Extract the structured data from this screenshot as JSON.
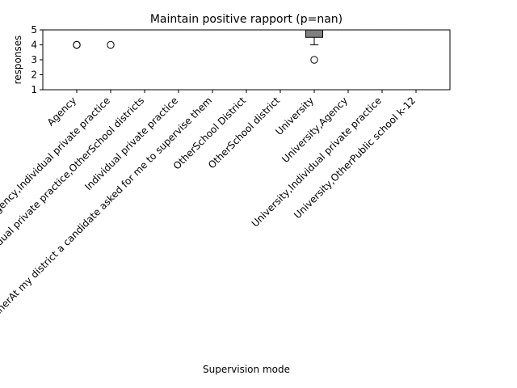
{
  "chart_data": {
    "type": "box",
    "title": "Maintain positive rapport (p=nan)",
    "xlabel": "Supervision mode",
    "ylabel": "responses",
    "ylim": [
      1,
      5
    ],
    "yticks": [
      1,
      2,
      3,
      4,
      5
    ],
    "grid": false,
    "categories": [
      "Agency",
      "Agency,Individual private practice",
      "Agency,Individual private practice,OtherSchool districts",
      "Individual private practice",
      "OtherAt my district a candidate asked for me to supervise them",
      "OtherSchool District",
      "OtherSchool district",
      "University",
      "University,Agency",
      "University,Individual private practice",
      "University,OtherPublic school k-12"
    ],
    "boxes": [
      {
        "label": "Agency",
        "q1": 5,
        "median": 5,
        "q3": 5,
        "whisker_low": 5,
        "whisker_high": 5,
        "outliers": [
          4,
          4
        ]
      },
      {
        "label": "Agency,Individual private practice",
        "q1": 5,
        "median": 5,
        "q3": 5,
        "whisker_low": 5,
        "whisker_high": 5,
        "outliers": [
          4
        ]
      },
      {
        "label": "Agency,Individual private practice,OtherSchool districts",
        "q1": 5,
        "median": 5,
        "q3": 5,
        "whisker_low": 5,
        "whisker_high": 5,
        "outliers": []
      },
      {
        "label": "Individual private practice",
        "q1": 5,
        "median": 5,
        "q3": 5,
        "whisker_low": 5,
        "whisker_high": 5,
        "outliers": []
      },
      {
        "label": "OtherAt my district a candidate asked for me to supervise them",
        "q1": 5,
        "median": 5,
        "q3": 5,
        "whisker_low": 5,
        "whisker_high": 5,
        "outliers": []
      },
      {
        "label": "OtherSchool District",
        "q1": 5,
        "median": 5,
        "q3": 5,
        "whisker_low": 5,
        "whisker_high": 5,
        "outliers": []
      },
      {
        "label": "OtherSchool district",
        "q1": 5,
        "median": 5,
        "q3": 5,
        "whisker_low": 5,
        "whisker_high": 5,
        "outliers": []
      },
      {
        "label": "University",
        "q1": 4.5,
        "median": 5,
        "q3": 5,
        "whisker_low": 4,
        "whisker_high": 5,
        "outliers": [
          3
        ]
      },
      {
        "label": "University,Agency",
        "q1": 5,
        "median": 5,
        "q3": 5,
        "whisker_low": 5,
        "whisker_high": 5,
        "outliers": []
      },
      {
        "label": "University,Individual private practice",
        "q1": 5,
        "median": 5,
        "q3": 5,
        "whisker_low": 5,
        "whisker_high": 5,
        "outliers": []
      },
      {
        "label": "University,OtherPublic school k-12",
        "q1": 5,
        "median": 5,
        "q3": 5,
        "whisker_low": 5,
        "whisker_high": 5,
        "outliers": []
      }
    ],
    "colors": {
      "box_fill": "#808080",
      "box_edge": "#000000",
      "median": "#000000",
      "outlier_edge": "#000000",
      "background": "#ffffff"
    }
  }
}
